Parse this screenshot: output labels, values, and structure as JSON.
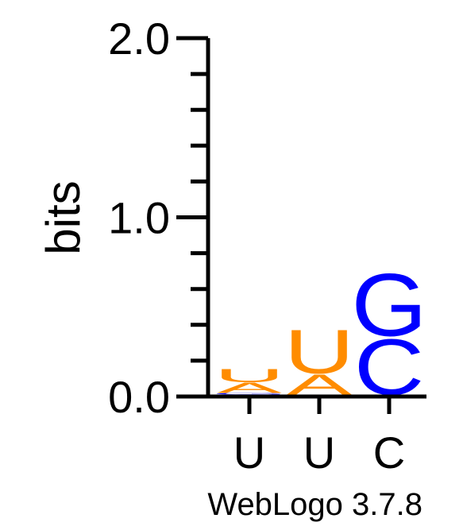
{
  "chart_data": {
    "type": "sequence-logo",
    "ylabel": "bits",
    "ylim": [
      0,
      2.0
    ],
    "yticks": [
      "0.0",
      "1.0",
      "2.0"
    ],
    "positions": [
      {
        "label": "U",
        "stack": [
          {
            "letter": "C",
            "bits": 0.01,
            "color": "#0000ff"
          },
          {
            "letter": "G",
            "bits": 0.01,
            "color": "#0000ff"
          },
          {
            "letter": "A",
            "bits": 0.06,
            "color": "#ff8c00"
          },
          {
            "letter": "U",
            "bits": 0.08,
            "color": "#ff8c00"
          }
        ]
      },
      {
        "label": "U",
        "stack": [
          {
            "letter": "G",
            "bits": 0.01,
            "color": "#0000ff"
          },
          {
            "letter": "A",
            "bits": 0.12,
            "color": "#ff8c00"
          },
          {
            "letter": "U",
            "bits": 0.26,
            "color": "#ff8c00"
          }
        ]
      },
      {
        "label": "C",
        "stack": [
          {
            "letter": "A",
            "bits": 0.01,
            "color": "#ff8c00"
          },
          {
            "letter": "C",
            "bits": 0.33,
            "color": "#0000ff"
          },
          {
            "letter": "G",
            "bits": 0.37,
            "color": "#0000ff"
          }
        ]
      }
    ]
  },
  "footer": "WebLogo 3.7.8"
}
